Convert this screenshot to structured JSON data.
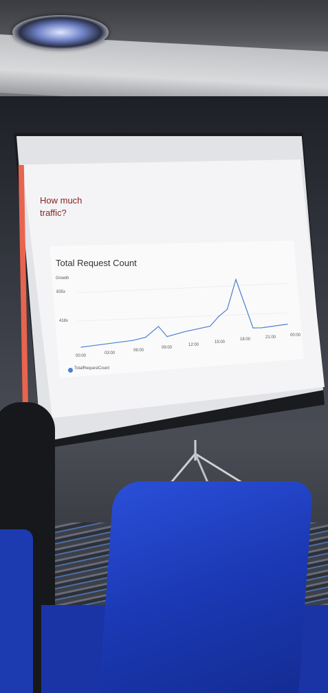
{
  "slide": {
    "title_line1": "How much",
    "title_line2": "traffic?"
  },
  "chart_data": {
    "type": "line",
    "title": "Total Request Count",
    "ylabel": "Growth",
    "yticks": [
      "835x",
      "418x"
    ],
    "categories": [
      "00:00",
      "03:00",
      "06:00",
      "09:00",
      "12:00",
      "15:00",
      "18:00",
      "21:00",
      "00:00"
    ],
    "series": [
      {
        "name": "TotalRequestCount",
        "color": "#4a7fd0",
        "x": [
          "00:00",
          "06:00",
          "07:30",
          "09:00",
          "10:00",
          "12:00",
          "15:00",
          "16:00",
          "17:00",
          "18:00",
          "20:00",
          "21:00",
          "00:00"
        ],
        "values": [
          0,
          30,
          60,
          210,
          40,
          90,
          140,
          280,
          380,
          835,
          50,
          40,
          60
        ]
      }
    ],
    "legend": "bottom-left"
  }
}
